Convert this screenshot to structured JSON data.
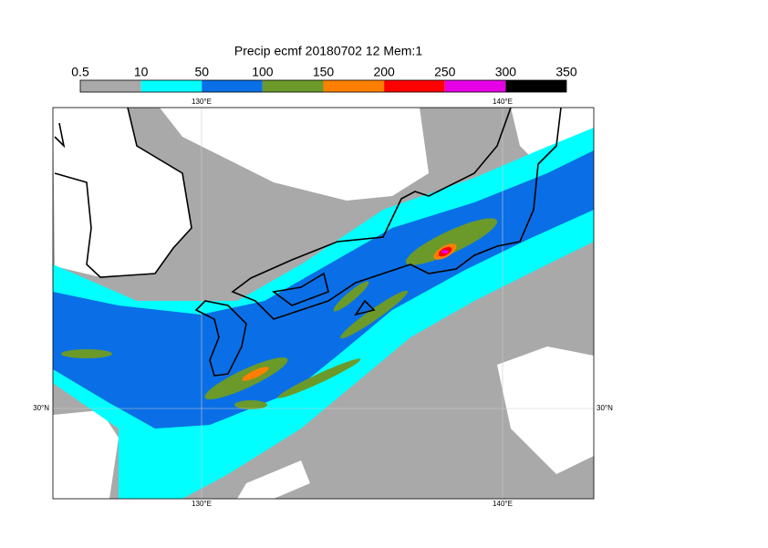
{
  "title": "Precip ecmf 20180702 12 Mem:1",
  "legend": {
    "labels": [
      "0.5",
      "10",
      "50",
      "100",
      "150",
      "200",
      "250",
      "300",
      "350"
    ],
    "colors": [
      "#a9a9a9",
      "#00ffff",
      "#0a6fe6",
      "#6b9a2a",
      "#ff8000",
      "#ff0000",
      "#e600e6",
      "#000000"
    ]
  },
  "map": {
    "top_labels": [
      "130°E",
      "140°E"
    ],
    "bottom_labels": [
      "130°E",
      "140°E"
    ],
    "left_labels": [
      "30°N"
    ],
    "right_labels": [
      "30°N"
    ]
  }
}
